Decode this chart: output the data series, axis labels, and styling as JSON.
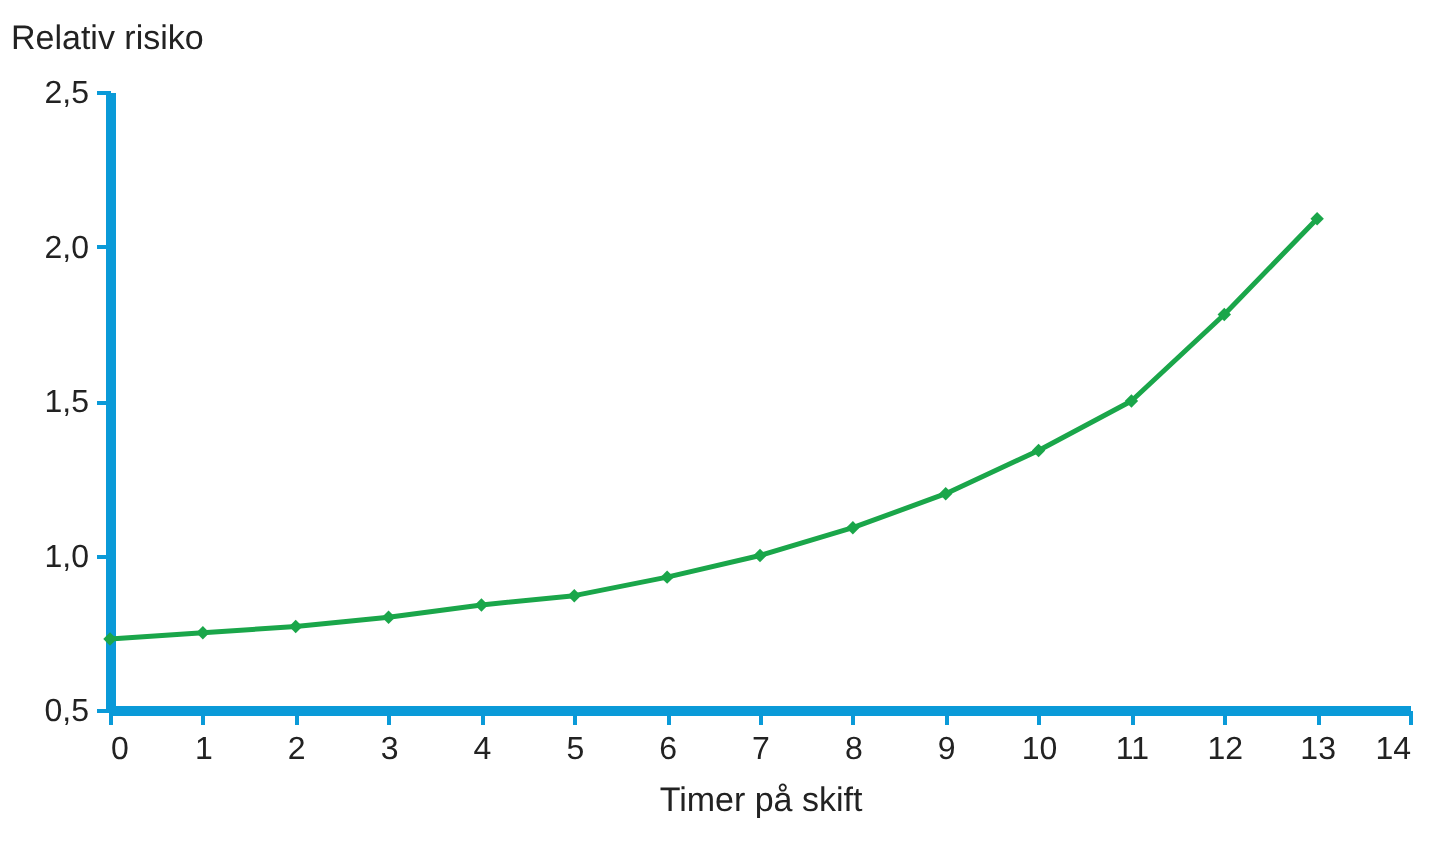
{
  "chart_data": {
    "type": "line",
    "xlabel": "Timer på skift",
    "ylabel": "Relativ risiko",
    "x": [
      0,
      1,
      2,
      3,
      4,
      5,
      6,
      7,
      8,
      9,
      10,
      11,
      12,
      13
    ],
    "series": [
      {
        "color": "#1aa64a",
        "values": [
          0.73,
          0.75,
          0.77,
          0.8,
          0.84,
          0.87,
          0.93,
          1.0,
          1.09,
          1.2,
          1.34,
          1.5,
          1.78,
          2.09
        ]
      }
    ],
    "xlim": [
      0,
      14
    ],
    "xticks": [
      0,
      1,
      2,
      3,
      4,
      5,
      6,
      7,
      8,
      9,
      10,
      11,
      12,
      13,
      14
    ],
    "ylim": [
      0.5,
      2.5
    ],
    "yticks": [
      {
        "value": 0.5,
        "label": "0,5"
      },
      {
        "value": 1,
        "label": "1,0"
      },
      {
        "value": 1.5,
        "label": "1,5"
      },
      {
        "value": 2,
        "label": "2,0"
      },
      {
        "value": 2.5,
        "label": "2,5"
      }
    ],
    "grid": false,
    "legend": false,
    "marker": "diamond",
    "line_style": "solid"
  }
}
